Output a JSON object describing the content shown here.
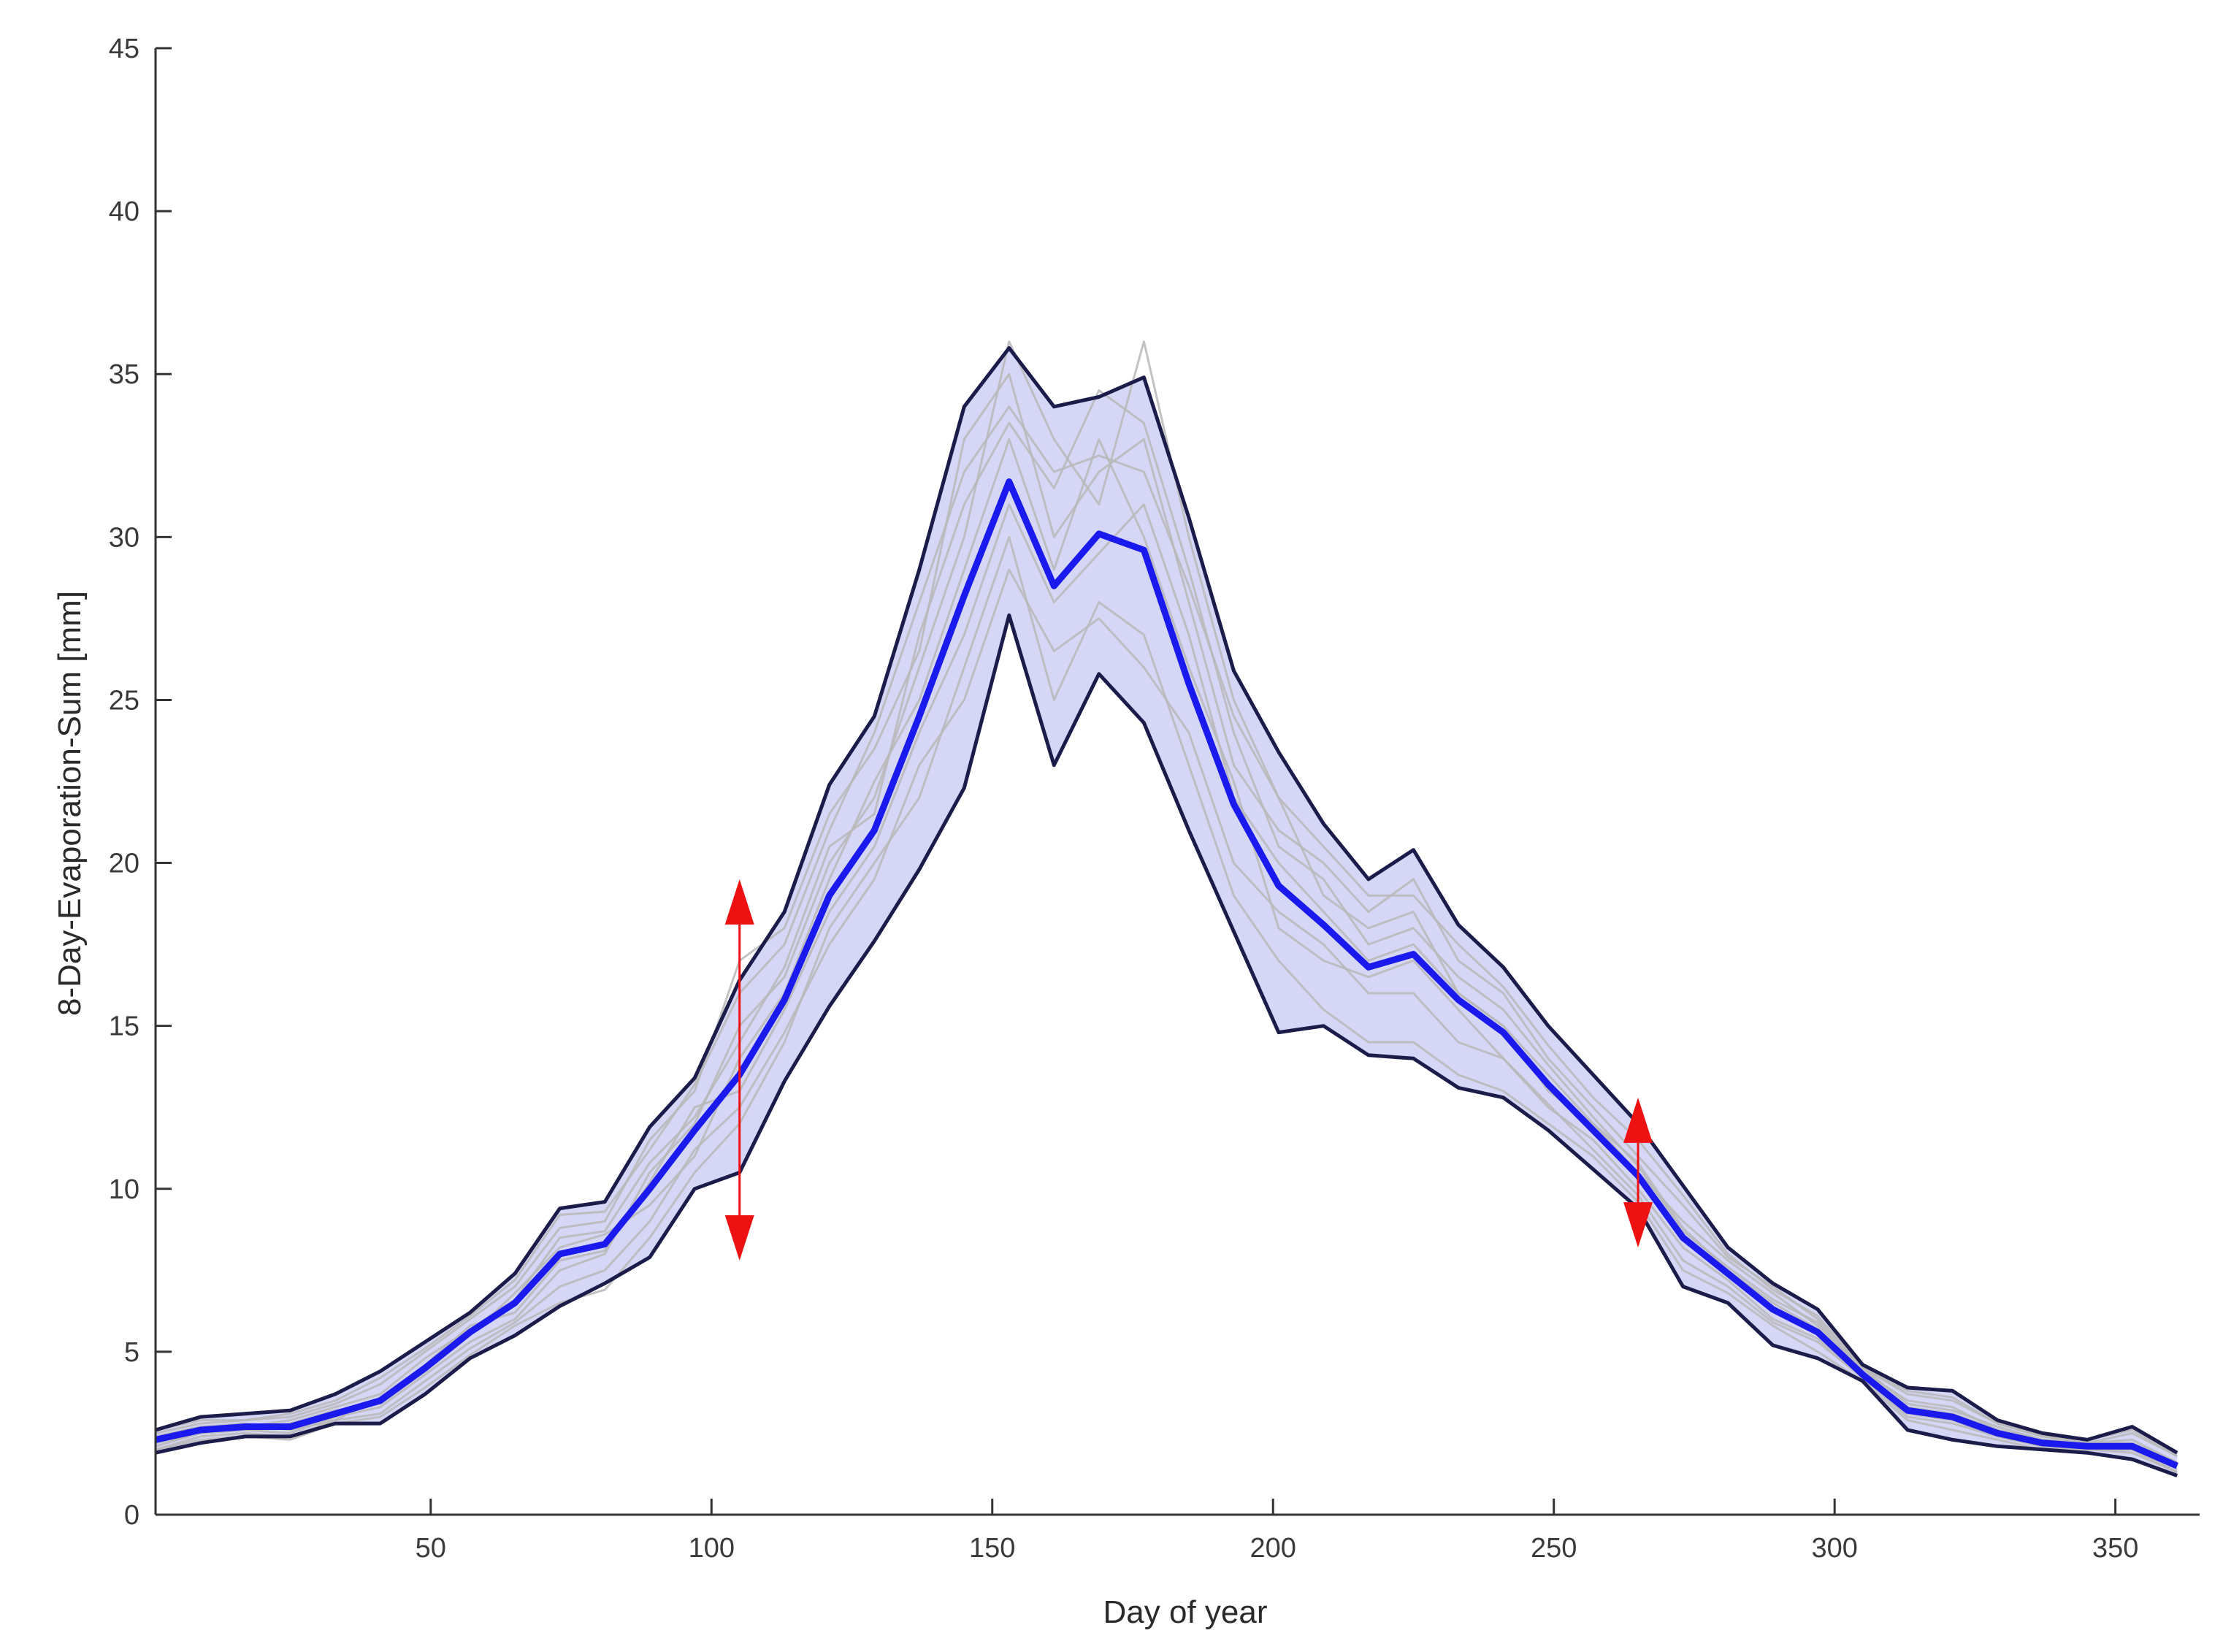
{
  "chart_data": {
    "type": "line",
    "title": "",
    "xlabel": "Day of year",
    "ylabel": "8-Day-Evaporation-Sum [mm]",
    "xlim": [
      1,
      365
    ],
    "ylim": [
      0,
      45
    ],
    "xticks": [
      50,
      100,
      150,
      200,
      250,
      300,
      350
    ],
    "yticks": [
      0,
      5,
      10,
      15,
      20,
      25,
      30,
      35,
      40,
      45
    ],
    "x": [
      1,
      9,
      17,
      25,
      33,
      41,
      49,
      57,
      65,
      73,
      81,
      89,
      97,
      105,
      113,
      121,
      129,
      137,
      145,
      153,
      161,
      169,
      177,
      185,
      193,
      201,
      209,
      217,
      225,
      233,
      241,
      249,
      257,
      265,
      273,
      281,
      289,
      297,
      305,
      313,
      321,
      329,
      337,
      345,
      353,
      361
    ],
    "series": [
      {
        "name": "mean",
        "role": "mean",
        "color": "#1a1aee",
        "values": [
          2.3,
          2.6,
          2.7,
          2.7,
          3.1,
          3.5,
          4.5,
          5.6,
          6.5,
          8.0,
          8.3,
          10.0,
          11.8,
          13.5,
          15.8,
          19.0,
          21.0,
          24.5,
          28.2,
          31.7,
          28.5,
          30.1,
          29.6,
          25.5,
          21.8,
          19.3,
          18.1,
          16.8,
          17.2,
          15.8,
          14.8,
          13.2,
          11.8,
          10.4,
          8.5,
          7.4,
          6.3,
          5.6,
          4.3,
          3.2,
          3.0,
          2.5,
          2.2,
          2.1,
          2.1,
          1.5
        ]
      },
      {
        "name": "upper bound",
        "role": "upper",
        "color": "#1c1c4a",
        "values": [
          2.6,
          3.0,
          3.1,
          3.2,
          3.7,
          4.4,
          5.3,
          6.2,
          7.4,
          9.4,
          9.6,
          11.9,
          13.4,
          16.4,
          18.5,
          22.4,
          24.5,
          29.0,
          34.0,
          35.8,
          34.0,
          34.3,
          34.9,
          30.6,
          25.9,
          23.4,
          21.2,
          19.5,
          20.4,
          18.1,
          16.8,
          15.0,
          13.5,
          12.0,
          10.1,
          8.2,
          7.1,
          6.3,
          4.6,
          3.9,
          3.8,
          2.9,
          2.5,
          2.3,
          2.7,
          1.9
        ]
      },
      {
        "name": "lower bound",
        "role": "lower",
        "color": "#1c1c4a",
        "values": [
          1.9,
          2.2,
          2.4,
          2.4,
          2.8,
          2.8,
          3.7,
          4.8,
          5.5,
          6.4,
          7.1,
          7.9,
          10.0,
          10.5,
          13.3,
          15.6,
          17.6,
          19.8,
          22.3,
          27.6,
          23.0,
          25.8,
          24.3,
          21.0,
          17.9,
          14.8,
          15.0,
          14.1,
          14.0,
          13.1,
          12.8,
          11.8,
          10.6,
          9.4,
          7.0,
          6.5,
          5.2,
          4.8,
          4.1,
          2.6,
          2.3,
          2.1,
          2.0,
          1.9,
          1.7,
          1.2
        ]
      },
      {
        "name": "year 1",
        "role": "year",
        "color": "#b8b8b8",
        "values": [
          2.2,
          2.5,
          2.6,
          2.5,
          3.0,
          3.3,
          4.3,
          5.3,
          6.0,
          7.5,
          8.0,
          10.5,
          12.0,
          15.0,
          16.5,
          20.0,
          22.0,
          26.0,
          30.0,
          36.0,
          33.0,
          31.0,
          36.0,
          30.0,
          25.0,
          22.0,
          19.0,
          18.0,
          18.5,
          16.0,
          15.0,
          13.0,
          12.0,
          10.5,
          9.0,
          7.8,
          6.8,
          5.8,
          4.5,
          3.4,
          3.2,
          2.7,
          2.3,
          2.2,
          2.3,
          1.6
        ]
      },
      {
        "name": "year 2",
        "role": "year",
        "color": "#b8b8b8",
        "values": [
          2.0,
          2.3,
          2.4,
          2.3,
          2.8,
          3.0,
          3.9,
          4.9,
          5.8,
          6.5,
          6.9,
          8.5,
          10.5,
          12.0,
          14.5,
          18.0,
          20.0,
          22.0,
          26.0,
          30.0,
          25.0,
          28.0,
          27.0,
          23.0,
          19.0,
          17.0,
          15.5,
          14.5,
          14.5,
          13.5,
          13.0,
          12.0,
          11.0,
          9.6,
          7.5,
          6.8,
          5.8,
          5.0,
          4.1,
          2.9,
          2.6,
          2.3,
          2.0,
          2.0,
          1.9,
          1.3
        ]
      },
      {
        "name": "year 3",
        "role": "year",
        "color": "#b8b8b8",
        "values": [
          2.5,
          2.8,
          2.9,
          3.0,
          3.4,
          4.0,
          5.0,
          6.0,
          7.0,
          8.8,
          9.0,
          11.5,
          13.0,
          17.0,
          18.0,
          21.5,
          23.5,
          26.5,
          33.0,
          35.0,
          30.0,
          32.0,
          33.0,
          28.0,
          23.0,
          21.0,
          20.0,
          18.5,
          19.5,
          17.0,
          16.0,
          14.0,
          12.5,
          11.0,
          9.5,
          7.9,
          7.0,
          6.0,
          4.5,
          3.7,
          3.5,
          2.8,
          2.4,
          2.2,
          2.5,
          1.8
        ]
      },
      {
        "name": "year 4",
        "role": "year",
        "color": "#b8b8b8",
        "values": [
          2.1,
          2.5,
          2.6,
          2.8,
          3.2,
          3.4,
          4.4,
          5.5,
          6.8,
          8.2,
          8.6,
          9.5,
          11.0,
          14.0,
          16.0,
          19.5,
          22.5,
          25.0,
          29.0,
          33.0,
          29.0,
          33.0,
          30.0,
          26.0,
          22.5,
          18.0,
          17.0,
          16.5,
          17.0,
          15.5,
          14.0,
          12.5,
          11.5,
          10.0,
          8.2,
          7.2,
          6.0,
          5.4,
          4.2,
          3.1,
          2.9,
          2.4,
          2.1,
          2.0,
          2.0,
          1.4
        ]
      },
      {
        "name": "year 5",
        "role": "year",
        "color": "#b8b8b8",
        "values": [
          2.4,
          2.7,
          2.8,
          2.6,
          2.9,
          3.6,
          4.6,
          5.8,
          6.2,
          7.8,
          8.1,
          10.2,
          12.5,
          13.0,
          15.5,
          18.5,
          20.5,
          24.0,
          27.0,
          31.0,
          28.0,
          29.5,
          31.0,
          27.0,
          22.0,
          20.0,
          18.5,
          17.0,
          17.5,
          16.0,
          15.0,
          13.5,
          12.0,
          10.8,
          8.8,
          7.5,
          6.5,
          5.7,
          4.4,
          3.3,
          3.1,
          2.6,
          2.2,
          2.1,
          2.1,
          1.5
        ]
      },
      {
        "name": "year 6",
        "role": "year",
        "color": "#b8b8b8",
        "values": [
          2.3,
          2.6,
          2.7,
          2.9,
          3.3,
          3.7,
          4.8,
          5.7,
          6.6,
          8.5,
          8.7,
          10.8,
          12.2,
          14.5,
          16.8,
          20.5,
          21.5,
          27.0,
          31.0,
          33.5,
          31.5,
          34.5,
          33.5,
          29.0,
          24.0,
          20.5,
          19.5,
          17.5,
          18.0,
          16.5,
          15.5,
          13.8,
          12.2,
          10.7,
          8.7,
          7.6,
          6.6,
          5.9,
          4.4,
          3.5,
          3.3,
          2.6,
          2.3,
          2.2,
          2.2,
          1.6
        ]
      },
      {
        "name": "year 7",
        "role": "year",
        "color": "#b8b8b8",
        "values": [
          2.0,
          2.4,
          2.5,
          2.4,
          2.9,
          3.1,
          4.1,
          5.1,
          5.9,
          7.0,
          7.5,
          9.0,
          11.2,
          12.5,
          14.8,
          17.5,
          19.5,
          23.0,
          25.0,
          29.0,
          26.5,
          27.5,
          26.0,
          24.0,
          20.0,
          18.5,
          17.5,
          16.0,
          16.0,
          14.5,
          14.0,
          12.6,
          11.2,
          9.8,
          7.8,
          7.0,
          5.9,
          5.3,
          4.2,
          3.0,
          2.8,
          2.4,
          2.1,
          2.0,
          2.0,
          1.3
        ]
      },
      {
        "name": "year 8",
        "role": "year",
        "color": "#b8b8b8",
        "values": [
          2.6,
          2.9,
          2.9,
          3.1,
          3.5,
          4.2,
          5.1,
          6.1,
          7.2,
          9.2,
          9.3,
          11.2,
          13.2,
          16.0,
          17.5,
          21.0,
          24.0,
          28.0,
          32.0,
          34.0,
          32.0,
          32.5,
          32.0,
          28.5,
          24.5,
          22.0,
          20.5,
          19.0,
          19.0,
          17.5,
          16.2,
          14.4,
          12.8,
          11.5,
          9.8,
          8.0,
          6.9,
          6.1,
          4.5,
          3.8,
          3.6,
          2.8,
          2.4,
          2.3,
          2.6,
          1.8
        ]
      }
    ],
    "annotations": [
      {
        "type": "double-arrow",
        "x": 105,
        "y_from": 19.5,
        "y_to": 7.8,
        "color": "#ee1111"
      },
      {
        "type": "double-arrow",
        "x": 265,
        "y_from": 12.8,
        "y_to": 8.2,
        "color": "#ee1111"
      }
    ],
    "band": {
      "fill": "#c8c8f4",
      "opacity": 0.75
    },
    "grid": false,
    "legend": "none"
  }
}
